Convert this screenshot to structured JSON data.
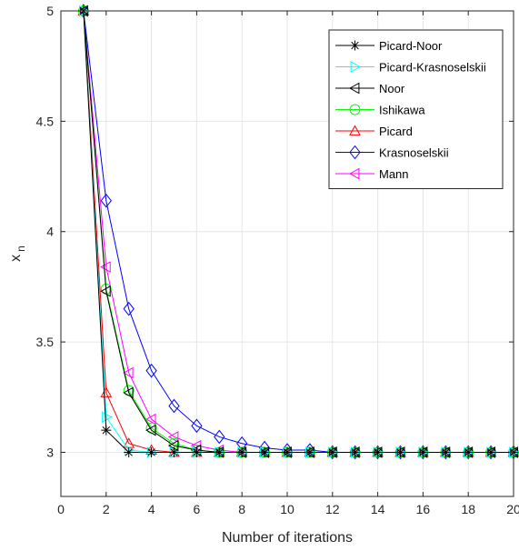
{
  "chart_data": {
    "type": "line",
    "xlabel": "Number of iterations",
    "ylabel": "x",
    "ylabel_subscript": "n",
    "xlim": [
      0,
      20
    ],
    "ylim": [
      2.8,
      5
    ],
    "xticks": [
      0,
      2,
      4,
      6,
      8,
      10,
      12,
      14,
      16,
      18,
      20
    ],
    "yticks": [
      3,
      3.5,
      4,
      4.5,
      5
    ],
    "ytick_labels": [
      "3",
      "3.5",
      "4",
      "4.5",
      "5"
    ],
    "grid": true,
    "legend_position": "top-right",
    "x": [
      1,
      2,
      3,
      4,
      5,
      6,
      7,
      8,
      9,
      10,
      11,
      12,
      13,
      14,
      15,
      16,
      17,
      18,
      19,
      20
    ],
    "series": [
      {
        "name": "Picard-Noor",
        "color": "#000000",
        "marker": "asterisk",
        "values": [
          5,
          3.1,
          3.0,
          3.0,
          3.0,
          3.0,
          3.0,
          3.0,
          3.0,
          3.0,
          3.0,
          3.0,
          3.0,
          3.0,
          3.0,
          3.0,
          3.0,
          3.0,
          3.0,
          3.0
        ]
      },
      {
        "name": "Picard-Krasnoselskii",
        "color": "#00ffff",
        "marker": "triangle-right",
        "values": [
          5,
          3.16,
          3.01,
          3.0,
          3.0,
          3.0,
          3.0,
          3.0,
          3.0,
          3.0,
          3.0,
          3.0,
          3.0,
          3.0,
          3.0,
          3.0,
          3.0,
          3.0,
          3.0,
          3.0
        ]
      },
      {
        "name": "Noor",
        "color": "#000000",
        "marker": "triangle-left",
        "values": [
          5,
          3.73,
          3.27,
          3.1,
          3.03,
          3.01,
          3.0,
          3.0,
          3.0,
          3.0,
          3.0,
          3.0,
          3.0,
          3.0,
          3.0,
          3.0,
          3.0,
          3.0,
          3.0,
          3.0
        ]
      },
      {
        "name": "Ishikawa",
        "color": "#00ff00",
        "marker": "circle",
        "values": [
          5,
          3.74,
          3.28,
          3.11,
          3.04,
          3.01,
          3.0,
          3.0,
          3.0,
          3.0,
          3.0,
          3.0,
          3.0,
          3.0,
          3.0,
          3.0,
          3.0,
          3.0,
          3.0,
          3.0
        ]
      },
      {
        "name": "Picard",
        "color": "#ff0000",
        "marker": "triangle-up",
        "values": [
          5,
          3.27,
          3.04,
          3.01,
          3.0,
          3.0,
          3.0,
          3.0,
          3.0,
          3.0,
          3.0,
          3.0,
          3.0,
          3.0,
          3.0,
          3.0,
          3.0,
          3.0,
          3.0,
          3.0
        ]
      },
      {
        "name": "Krasnoselskii",
        "color": "#0000ff",
        "marker": "diamond",
        "values": [
          5,
          4.14,
          3.65,
          3.37,
          3.21,
          3.12,
          3.07,
          3.04,
          3.02,
          3.01,
          3.01,
          3.0,
          3.0,
          3.0,
          3.0,
          3.0,
          3.0,
          3.0,
          3.0,
          3.0
        ]
      },
      {
        "name": "Mann",
        "color": "#ff00ff",
        "marker": "triangle-left",
        "values": [
          5,
          3.84,
          3.36,
          3.15,
          3.07,
          3.03,
          3.01,
          3.0,
          3.0,
          3.0,
          3.0,
          3.0,
          3.0,
          3.0,
          3.0,
          3.0,
          3.0,
          3.0,
          3.0,
          3.0
        ]
      }
    ]
  }
}
